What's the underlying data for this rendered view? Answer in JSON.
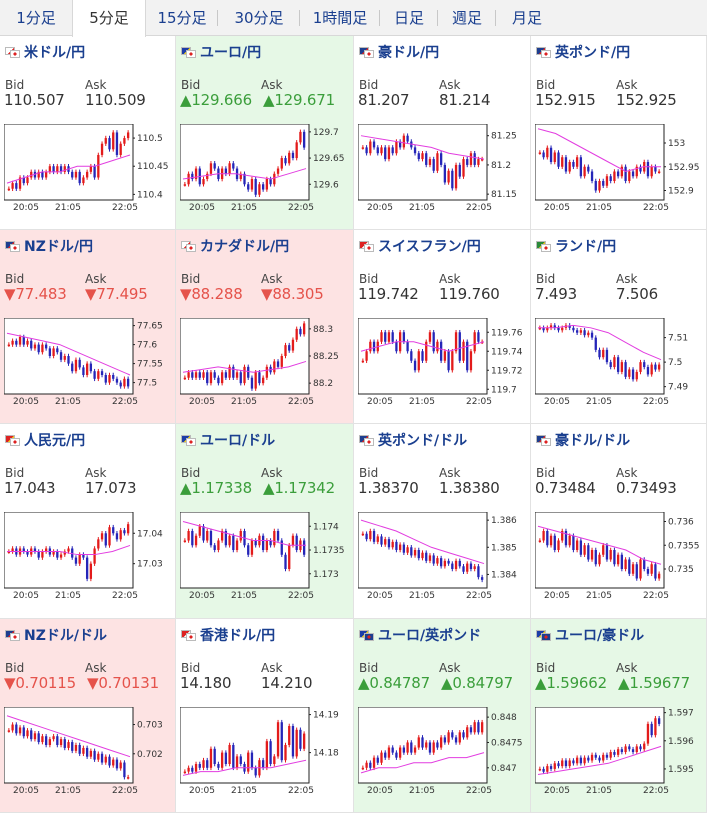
{
  "tabs": [
    "1分足",
    "5分足",
    "15分足",
    "30分足",
    "1時間足",
    "日足",
    "週足",
    "月足"
  ],
  "active_tab": 1,
  "colors": {
    "up_candle": "#e31b1b",
    "down_candle": "#2525b8",
    "ma_pink": "#e23de0",
    "ma_cyan": "#1cb5c9",
    "up_bg": "#e6f8e6",
    "down_bg": "#fde3e3",
    "link": "#1a3f8f"
  },
  "bid_label": "Bid",
  "ask_label": "Ask",
  "pairs": [
    {
      "name": "米ドル/円",
      "flags": [
        "us",
        "jp"
      ],
      "trend": "none",
      "bid": "110.507",
      "ask": "110.509",
      "chart": {
        "yticks": [
          "110.5",
          "110.45",
          "110.4"
        ],
        "xticks": [
          "20:05",
          "21:05",
          "22:05"
        ],
        "path": [
          110.41,
          110.42,
          110.41,
          110.43,
          110.42,
          110.43,
          110.44,
          110.43,
          110.44,
          110.43,
          110.44,
          110.45,
          110.44,
          110.45,
          110.44,
          110.45,
          110.44,
          110.43,
          110.44,
          110.42,
          110.43,
          110.44,
          110.45,
          110.43,
          110.47,
          110.49,
          110.5,
          110.48,
          110.51,
          110.47,
          110.49,
          110.5,
          110.51
        ],
        "ma": [
          110.42,
          110.43,
          110.44,
          110.44,
          110.45,
          110.45,
          110.46,
          110.47
        ],
        "ymin": 110.39,
        "ymax": 110.525
      }
    },
    {
      "name": "ユーロ/円",
      "flags": [
        "eu",
        "jp"
      ],
      "trend": "up",
      "bid": "▲129.666",
      "ask": "▲129.671",
      "chart": {
        "yticks": [
          "129.7",
          "129.65",
          "129.6"
        ],
        "xticks": [
          "20:05",
          "21:05",
          "22:05"
        ],
        "path": [
          129.6,
          129.62,
          129.61,
          129.63,
          129.6,
          129.61,
          129.62,
          129.64,
          129.63,
          129.61,
          129.63,
          129.62,
          129.64,
          129.63,
          129.61,
          129.62,
          129.6,
          129.59,
          129.61,
          129.58,
          129.6,
          129.59,
          129.61,
          129.6,
          129.62,
          129.63,
          129.65,
          129.64,
          129.66,
          129.65,
          129.68,
          129.7,
          129.67
        ],
        "ma": [
          129.61,
          129.615,
          129.62,
          129.62,
          129.615,
          129.61,
          129.62,
          129.63
        ],
        "ymin": 129.57,
        "ymax": 129.715
      }
    },
    {
      "name": "豪ドル/円",
      "flags": [
        "au",
        "jp"
      ],
      "trend": "none",
      "bid": "81.207",
      "ask": "81.214",
      "chart": {
        "yticks": [
          "81.25",
          "81.2",
          "81.15"
        ],
        "xticks": [
          "20:05",
          "21:05",
          "22:05"
        ],
        "path": [
          81.23,
          81.22,
          81.24,
          81.23,
          81.22,
          81.23,
          81.21,
          81.23,
          81.22,
          81.24,
          81.23,
          81.25,
          81.24,
          81.23,
          81.22,
          81.21,
          81.22,
          81.2,
          81.21,
          81.19,
          81.22,
          81.2,
          81.17,
          81.19,
          81.16,
          81.2,
          81.18,
          81.21,
          81.2,
          81.22,
          81.2,
          81.21,
          81.21
        ],
        "ma": [
          81.25,
          81.245,
          81.24,
          81.235,
          81.23,
          81.22,
          81.215,
          81.21
        ],
        "ymin": 81.14,
        "ymax": 81.27
      }
    },
    {
      "name": "英ポンド/円",
      "flags": [
        "gb",
        "jp"
      ],
      "trend": "none",
      "bid": "152.915",
      "ask": "152.925",
      "chart": {
        "yticks": [
          "153",
          "152.95",
          "152.9"
        ],
        "xticks": [
          "20:05",
          "21:05",
          "22:05"
        ],
        "path": [
          152.98,
          152.97,
          152.99,
          152.96,
          152.98,
          152.95,
          152.97,
          152.94,
          152.96,
          152.95,
          152.97,
          152.93,
          152.95,
          152.94,
          152.92,
          152.9,
          152.92,
          152.91,
          152.93,
          152.92,
          152.94,
          152.93,
          152.95,
          152.92,
          152.94,
          152.93,
          152.95,
          152.94,
          152.96,
          152.93,
          152.95,
          152.94,
          152.94
        ],
        "ma": [
          153.03,
          153.02,
          153.0,
          152.98,
          152.96,
          152.94,
          152.95,
          152.95
        ],
        "ymin": 152.88,
        "ymax": 153.04
      }
    },
    {
      "name": "NZドル/円",
      "flags": [
        "nz",
        "jp"
      ],
      "trend": "down",
      "bid": "▼77.483",
      "ask": "▼77.495",
      "chart": {
        "yticks": [
          "77.65",
          "77.6",
          "77.55",
          "77.5"
        ],
        "xticks": [
          "20:05",
          "21:05",
          "22:05"
        ],
        "path": [
          77.6,
          77.61,
          77.6,
          77.62,
          77.6,
          77.61,
          77.59,
          77.6,
          77.58,
          77.6,
          77.59,
          77.57,
          77.59,
          77.58,
          77.56,
          77.57,
          77.55,
          77.53,
          77.56,
          77.54,
          77.52,
          77.55,
          77.53,
          77.51,
          77.53,
          77.52,
          77.5,
          77.52,
          77.51,
          77.5,
          77.49,
          77.51,
          77.49
        ],
        "ma": [
          77.63,
          77.62,
          77.61,
          77.6,
          77.58,
          77.56,
          77.54,
          77.52
        ],
        "ymin": 77.47,
        "ymax": 77.67
      }
    },
    {
      "name": "カナダドル/円",
      "flags": [
        "ca",
        "jp"
      ],
      "trend": "down",
      "bid": "▼88.288",
      "ask": "▼88.305",
      "chart": {
        "yticks": [
          "88.3",
          "88.25",
          "88.2"
        ],
        "xticks": [
          "20:05",
          "21:05",
          "22:05"
        ],
        "path": [
          88.21,
          88.22,
          88.21,
          88.22,
          88.21,
          88.22,
          88.2,
          88.22,
          88.21,
          88.2,
          88.22,
          88.21,
          88.23,
          88.21,
          88.22,
          88.2,
          88.23,
          88.21,
          88.19,
          88.22,
          88.2,
          88.21,
          88.23,
          88.22,
          88.24,
          88.23,
          88.25,
          88.27,
          88.26,
          88.28,
          88.3,
          88.29,
          88.31
        ],
        "ma": [
          88.22,
          88.225,
          88.23,
          88.225,
          88.22,
          88.225,
          88.23,
          88.24
        ],
        "ymin": 88.18,
        "ymax": 88.32
      }
    },
    {
      "name": "スイスフラン/円",
      "flags": [
        "ch",
        "jp"
      ],
      "trend": "none",
      "bid": "119.742",
      "ask": "119.760",
      "chart": {
        "yticks": [
          "119.76",
          "119.74",
          "119.72",
          "119.7"
        ],
        "xticks": [
          "20:05",
          "21:05",
          "22:05"
        ],
        "path": [
          119.73,
          119.74,
          119.75,
          119.74,
          119.75,
          119.76,
          119.75,
          119.76,
          119.75,
          119.74,
          119.76,
          119.75,
          119.74,
          119.73,
          119.72,
          119.74,
          119.73,
          119.75,
          119.76,
          119.74,
          119.75,
          119.73,
          119.74,
          119.72,
          119.74,
          119.76,
          119.73,
          119.75,
          119.72,
          119.74,
          119.76,
          119.75,
          119.75
        ],
        "ma": [
          119.74,
          119.745,
          119.75,
          119.75,
          119.745,
          119.74,
          119.745,
          119.75
        ],
        "ymin": 119.695,
        "ymax": 119.775
      }
    },
    {
      "name": "ランド/円",
      "flags": [
        "za",
        "jp"
      ],
      "trend": "none",
      "bid": "7.493",
      "ask": "7.506",
      "chart": {
        "yticks": [
          "7.51",
          "7.5",
          "7.49"
        ],
        "xticks": [
          "20:05",
          "21:05",
          "22:05"
        ],
        "path": [
          7.514,
          7.513,
          7.514,
          7.515,
          7.514,
          7.513,
          7.514,
          7.515,
          7.514,
          7.513,
          7.512,
          7.513,
          7.511,
          7.512,
          7.51,
          7.505,
          7.502,
          7.505,
          7.5,
          7.498,
          7.502,
          7.496,
          7.5,
          7.494,
          7.497,
          7.493,
          7.496,
          7.5,
          7.498,
          7.495,
          7.499,
          7.497,
          7.499
        ],
        "ma": [
          7.514,
          7.514,
          7.515,
          7.514,
          7.512,
          7.508,
          7.504,
          7.501
        ],
        "ymin": 7.487,
        "ymax": 7.518
      }
    },
    {
      "name": "人民元/円",
      "flags": [
        "cn",
        "jp"
      ],
      "trend": "none",
      "bid": "17.043",
      "ask": "17.073",
      "chart": {
        "yticks": [
          "17.04",
          "17.03"
        ],
        "xticks": [
          "20:05",
          "21:05",
          "22:05"
        ],
        "path": [
          17.034,
          17.035,
          17.033,
          17.035,
          17.034,
          17.033,
          17.035,
          17.034,
          17.032,
          17.034,
          17.035,
          17.033,
          17.034,
          17.032,
          17.033,
          17.034,
          17.035,
          17.032,
          17.03,
          17.033,
          17.032,
          17.025,
          17.03,
          17.035,
          17.038,
          17.04,
          17.036,
          17.042,
          17.04,
          17.038,
          17.041,
          17.04,
          17.043
        ],
        "ma": [
          17.034,
          17.034,
          17.034,
          17.034,
          17.033,
          17.033,
          17.034,
          17.036
        ],
        "ymin": 17.022,
        "ymax": 17.047
      }
    },
    {
      "name": "ユーロ/ドル",
      "flags": [
        "eu",
        "us"
      ],
      "trend": "up",
      "bid": "▲1.17338",
      "ask": "▲1.17342",
      "chart": {
        "yticks": [
          "1.174",
          "1.1735",
          "1.173"
        ],
        "xticks": [
          "20:05",
          "21:05",
          "22:05"
        ],
        "path": [
          1.1737,
          1.1739,
          1.1736,
          1.1738,
          1.174,
          1.1737,
          1.1739,
          1.1736,
          1.1735,
          1.1737,
          1.1739,
          1.1736,
          1.1738,
          1.1735,
          1.1737,
          1.1739,
          1.1736,
          1.1734,
          1.1737,
          1.1736,
          1.1738,
          1.1735,
          1.1737,
          1.1736,
          1.1739,
          1.1737,
          1.1734,
          1.1731,
          1.1736,
          1.1738,
          1.1735,
          1.1737,
          1.1734
        ],
        "ma": [
          1.1741,
          1.174,
          1.1739,
          1.1738,
          1.1737,
          1.1737,
          1.1736,
          1.1736
        ],
        "ymin": 1.1727,
        "ymax": 1.1743
      }
    },
    {
      "name": "英ポンド/ドル",
      "flags": [
        "gb",
        "us"
      ],
      "trend": "none",
      "bid": "1.38370",
      "ask": "1.38380",
      "chart": {
        "yticks": [
          "1.386",
          "1.385",
          "1.384"
        ],
        "xticks": [
          "20:05",
          "21:05",
          "22:05"
        ],
        "path": [
          1.3855,
          1.3853,
          1.3856,
          1.3852,
          1.3854,
          1.3851,
          1.3853,
          1.385,
          1.3852,
          1.3849,
          1.3851,
          1.3848,
          1.385,
          1.3847,
          1.3849,
          1.3846,
          1.3848,
          1.3845,
          1.3847,
          1.3844,
          1.3846,
          1.3843,
          1.3845,
          1.3844,
          1.3842,
          1.3845,
          1.3843,
          1.3841,
          1.3844,
          1.3842,
          1.3843,
          1.3839,
          1.3838
        ],
        "ma": [
          1.386,
          1.3858,
          1.3856,
          1.3853,
          1.385,
          1.3848,
          1.3846,
          1.3844
        ],
        "ymin": 1.3835,
        "ymax": 1.3863
      }
    },
    {
      "name": "豪ドル/ドル",
      "flags": [
        "au",
        "us"
      ],
      "trend": "none",
      "bid": "0.73484",
      "ask": "0.73493",
      "chart": {
        "yticks": [
          "0.736",
          "0.7355",
          "0.735"
        ],
        "xticks": [
          "20:05",
          "21:05",
          "22:05"
        ],
        "path": [
          0.7356,
          0.7358,
          0.7355,
          0.7357,
          0.7354,
          0.7356,
          0.7358,
          0.7355,
          0.7357,
          0.7354,
          0.7356,
          0.7353,
          0.7355,
          0.7352,
          0.7354,
          0.7351,
          0.7353,
          0.7355,
          0.7352,
          0.7354,
          0.7351,
          0.7353,
          0.735,
          0.7352,
          0.7349,
          0.7351,
          0.7348,
          0.7352,
          0.735,
          0.7349,
          0.7351,
          0.7348,
          0.7349
        ],
        "ma": [
          0.7359,
          0.7358,
          0.7357,
          0.7356,
          0.7355,
          0.7354,
          0.7352,
          0.7351
        ],
        "ymin": 0.7346,
        "ymax": 0.7362
      }
    },
    {
      "name": "NZドル/ドル",
      "flags": [
        "nz",
        "us"
      ],
      "trend": "down",
      "bid": "▼0.70115",
      "ask": "▼0.70131",
      "chart": {
        "yticks": [
          "0.703",
          "0.702"
        ],
        "xticks": [
          "20:05",
          "21:05",
          "22:05"
        ],
        "path": [
          0.7028,
          0.703,
          0.7027,
          0.7029,
          0.7026,
          0.7028,
          0.7025,
          0.7027,
          0.7024,
          0.7026,
          0.7023,
          0.7025,
          0.7026,
          0.7023,
          0.7025,
          0.7022,
          0.7024,
          0.7021,
          0.7023,
          0.702,
          0.7022,
          0.7019,
          0.7021,
          0.7018,
          0.702,
          0.7017,
          0.7019,
          0.7016,
          0.7018,
          0.7015,
          0.7017,
          0.7012,
          0.7012
        ],
        "ma": [
          0.7033,
          0.7031,
          0.7029,
          0.7027,
          0.7025,
          0.7023,
          0.7021,
          0.7019
        ],
        "ymin": 0.701,
        "ymax": 0.7036
      }
    },
    {
      "name": "香港ドル/円",
      "flags": [
        "hk",
        "jp"
      ],
      "trend": "none",
      "bid": "14.180",
      "ask": "14.210",
      "chart": {
        "yticks": [
          "14.19",
          "14.18"
        ],
        "xticks": [
          "20:05",
          "21:05",
          "22:05"
        ],
        "path": [
          14.175,
          14.176,
          14.175,
          14.177,
          14.176,
          14.178,
          14.176,
          14.181,
          14.177,
          14.176,
          14.18,
          14.177,
          14.182,
          14.176,
          14.179,
          14.177,
          14.175,
          14.18,
          14.176,
          14.174,
          14.178,
          14.176,
          14.183,
          14.177,
          14.179,
          14.188,
          14.178,
          14.182,
          14.187,
          14.179,
          14.186,
          14.181,
          14.185
        ],
        "ma": [
          14.174,
          14.175,
          14.175,
          14.176,
          14.176,
          14.176,
          14.177,
          14.178
        ],
        "ymin": 14.172,
        "ymax": 14.192
      }
    },
    {
      "name": "ユーロ/英ポンド",
      "flags": [
        "eu",
        "gb"
      ],
      "trend": "up",
      "bid": "▲0.84787",
      "ask": "▲0.84797",
      "chart": {
        "yticks": [
          "0.848",
          "0.8475",
          "0.847"
        ],
        "xticks": [
          "20:05",
          "21:05",
          "22:05"
        ],
        "path": [
          0.847,
          0.8471,
          0.847,
          0.8472,
          0.8471,
          0.8473,
          0.8472,
          0.8474,
          0.8473,
          0.8472,
          0.8474,
          0.8473,
          0.8475,
          0.8473,
          0.8474,
          0.8476,
          0.8474,
          0.8475,
          0.8473,
          0.8475,
          0.8474,
          0.8476,
          0.8475,
          0.8477,
          0.8476,
          0.8475,
          0.8477,
          0.8476,
          0.8478,
          0.8477,
          0.8479,
          0.8477,
          0.8479
        ],
        "ma": [
          0.8469,
          0.847,
          0.847,
          0.8471,
          0.8471,
          0.8472,
          0.8472,
          0.8473
        ],
        "ymin": 0.8467,
        "ymax": 0.8482
      }
    },
    {
      "name": "ユーロ/豪ドル",
      "flags": [
        "eu",
        "au"
      ],
      "trend": "up",
      "bid": "▲1.59662",
      "ask": "▲1.59677",
      "chart": {
        "yticks": [
          "1.597",
          "1.596",
          "1.595"
        ],
        "xticks": [
          "20:05",
          "21:05",
          "22:05"
        ],
        "path": [
          1.595,
          1.5949,
          1.5951,
          1.595,
          1.5952,
          1.5951,
          1.5953,
          1.5951,
          1.5953,
          1.5952,
          1.5954,
          1.5952,
          1.5954,
          1.5953,
          1.5955,
          1.5954,
          1.5953,
          1.5955,
          1.5954,
          1.5956,
          1.5955,
          1.5957,
          1.5956,
          1.5958,
          1.5957,
          1.5956,
          1.5958,
          1.5957,
          1.5959,
          1.5966,
          1.5962,
          1.5968,
          1.5966
        ],
        "ma": [
          1.5948,
          1.5949,
          1.595,
          1.5951,
          1.5952,
          1.5954,
          1.5956,
          1.5958
        ],
        "ymin": 1.5945,
        "ymax": 1.5972
      }
    }
  ]
}
